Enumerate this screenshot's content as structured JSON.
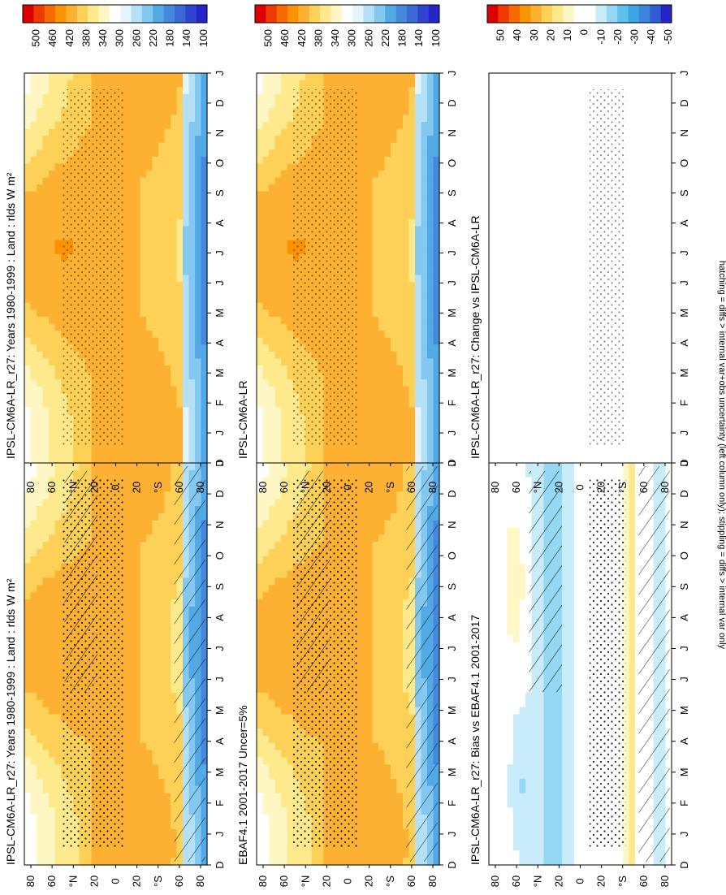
{
  "chart_data": {
    "type": "heatmap",
    "variable": "rlds",
    "units": "W m²",
    "footnote": "hatching = diffs > internal var+obs uncertainty (left column only); stippling = diffs > internal var only",
    "months": [
      "D",
      "J",
      "F",
      "M",
      "A",
      "M",
      "J",
      "J",
      "A",
      "S",
      "O",
      "N",
      "D",
      "J"
    ],
    "lat_ticks": [
      "80",
      "60",
      "°N",
      "20",
      "0",
      "20",
      "°S",
      "60",
      "80"
    ],
    "panels": [
      {
        "title": "IPSL-CM6A-LR_r27: Years 1980-1999 : Land : rlds W m²",
        "kind": "absolute",
        "position": "top-left",
        "hatching": true,
        "stippling": true
      },
      {
        "title": "IPSL-CM6A-LR_r27: Years 1980-1999 : Land : rlds W m²",
        "kind": "absolute",
        "position": "top-right",
        "hatching": false,
        "stippling": true
      },
      {
        "title": "EBAF4.1 2001-2017 Uncer=5%",
        "kind": "absolute",
        "position": "middle-left",
        "hatching": true,
        "stippling": true
      },
      {
        "title": "IPSL-CM6A-LR",
        "kind": "absolute",
        "position": "middle-right",
        "hatching": false,
        "stippling": true
      },
      {
        "title": "IPSL-CM6A-LR_r27: Bias vs EBAF4.1 2001-2017",
        "kind": "difference",
        "position": "bottom-left",
        "hatching": true,
        "stippling": true
      },
      {
        "title": "IPSL-CM6A-LR_r27: Change vs IPSL-CM6A-LR",
        "kind": "difference",
        "position": "bottom-right",
        "hatching": false,
        "stippling": true
      }
    ],
    "colorbars": {
      "absolute": {
        "labels": [
          "500",
          "460",
          "420",
          "380",
          "340",
          "300",
          "260",
          "220",
          "180",
          "140",
          "100"
        ],
        "range": [
          80,
          520
        ],
        "colors": [
          "#dc0000",
          "#ee3a00",
          "#f86a00",
          "#fb9200",
          "#fdb132",
          "#fdd057",
          "#feea8c",
          "#fef7c4",
          "#ffffff",
          "#e6f4fb",
          "#b4e0f8",
          "#82c8f0",
          "#52a9e6",
          "#4489db",
          "#3a68d4",
          "#2f45cf",
          "#2424c8"
        ]
      },
      "difference": {
        "labels": [
          "50",
          "40",
          "30",
          "20",
          "10",
          "0",
          "-10",
          "-20",
          "-30",
          "-40",
          "-50"
        ],
        "range": [
          -55,
          55
        ],
        "colors": [
          "#dc0000",
          "#ee3a00",
          "#f86a00",
          "#fb9200",
          "#fdb132",
          "#fdd057",
          "#feea8c",
          "#fef7c4",
          "#ffffff",
          "#ffffff",
          "#c8ecfa",
          "#94d8f6",
          "#5fc0ee",
          "#3ea4e4",
          "#3a84dc",
          "#2f5ed4",
          "#2424c8"
        ]
      }
    }
  }
}
